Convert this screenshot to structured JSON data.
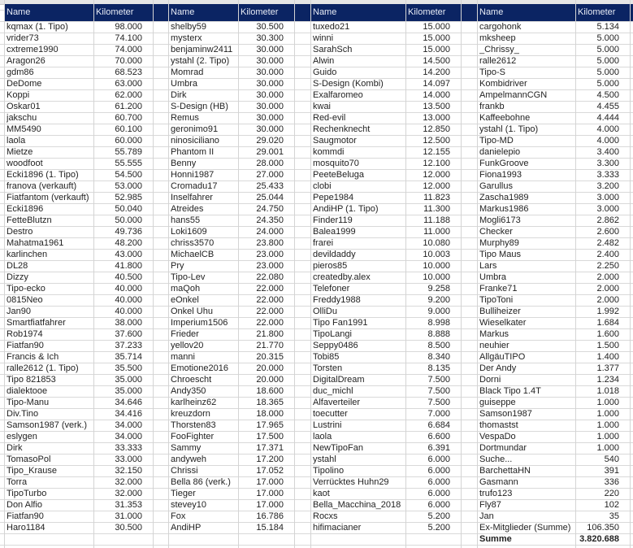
{
  "colors": {
    "header_bg": "#0b2463",
    "header_text": "#e8ecf6",
    "gridline": "#d4d4d4"
  },
  "groups": [
    {
      "header_name": "Name",
      "header_km": "Kilometer",
      "rows": [
        {
          "name": "kqmax (1. Tipo)",
          "km": "98.000"
        },
        {
          "name": "vrider73",
          "km": "74.100"
        },
        {
          "name": "cxtreme1990",
          "km": "74.000"
        },
        {
          "name": "Aragon26",
          "km": "70.000"
        },
        {
          "name": "gdm86",
          "km": "68.523"
        },
        {
          "name": "DeDome",
          "km": "63.000"
        },
        {
          "name": "Koppi",
          "km": "62.000"
        },
        {
          "name": "Oskar01",
          "km": "61.200"
        },
        {
          "name": "jakschu",
          "km": "60.700"
        },
        {
          "name": "MM5490",
          "km": "60.100"
        },
        {
          "name": "laola",
          "km": "60.000"
        },
        {
          "name": "Mietze",
          "km": "55.789"
        },
        {
          "name": "woodfoot",
          "km": "55.555"
        },
        {
          "name": "Ecki1896 (1. Tipo)",
          "km": "54.500"
        },
        {
          "name": "franova (verkauft)",
          "km": "53.000"
        },
        {
          "name": "Fiatfantom (verkauft)",
          "km": "52.985"
        },
        {
          "name": "Ecki1896",
          "km": "50.040"
        },
        {
          "name": "FetteBlutzn",
          "km": "50.000"
        },
        {
          "name": "Destro",
          "km": "49.736"
        },
        {
          "name": "Mahatma1961",
          "km": "48.200"
        },
        {
          "name": "karlinchen",
          "km": "43.000"
        },
        {
          "name": "DL28",
          "km": "41.800"
        },
        {
          "name": "Dizzy",
          "km": "40.500"
        },
        {
          "name": "Tipo-ecko",
          "km": "40.000"
        },
        {
          "name": "0815Neo",
          "km": "40.000"
        },
        {
          "name": "Jan90",
          "km": "40.000"
        },
        {
          "name": "Smartfiatfahrer",
          "km": "38.000"
        },
        {
          "name": "Rob1974",
          "km": "37.600"
        },
        {
          "name": "Fiatfan90",
          "km": "37.233"
        },
        {
          "name": "Francis & Ich",
          "km": "35.714"
        },
        {
          "name": "ralle2612 (1. Tipo)",
          "km": "35.500"
        },
        {
          "name": "Tipo 821853",
          "km": "35.000"
        },
        {
          "name": "dialektooe",
          "km": "35.000"
        },
        {
          "name": "Tipo-Manu",
          "km": "34.646"
        },
        {
          "name": "Div.Tino",
          "km": "34.416"
        },
        {
          "name": "Samson1987 (verk.)",
          "km": "34.000"
        },
        {
          "name": "eslygen",
          "km": "34.000"
        },
        {
          "name": "Dirk",
          "km": "33.333"
        },
        {
          "name": "TomasoPol",
          "km": "33.000"
        },
        {
          "name": "Tipo_Krause",
          "km": "32.150"
        },
        {
          "name": "Torra",
          "km": "32.000"
        },
        {
          "name": "TipoTurbo",
          "km": "32.000"
        },
        {
          "name": "Don Alfio",
          "km": "31.353"
        },
        {
          "name": "Fiatfan90",
          "km": "31.000"
        },
        {
          "name": "Haro1184",
          "km": "30.500"
        }
      ]
    },
    {
      "header_name": "Name",
      "header_km": "Kilometer",
      "rows": [
        {
          "name": "shelby59",
          "km": "30.500"
        },
        {
          "name": "mysterx",
          "km": "30.300"
        },
        {
          "name": "benjaminw2411",
          "km": "30.000"
        },
        {
          "name": "ystahl (2. Tipo)",
          "km": "30.000"
        },
        {
          "name": "Momrad",
          "km": "30.000"
        },
        {
          "name": "Umbra",
          "km": "30.000"
        },
        {
          "name": "Dirk",
          "km": "30.000"
        },
        {
          "name": "S-Design (HB)",
          "km": "30.000"
        },
        {
          "name": "Remus",
          "km": "30.000"
        },
        {
          "name": "geronimo91",
          "km": "30.000"
        },
        {
          "name": "ninosiciliano",
          "km": "29.020"
        },
        {
          "name": "Phantom II",
          "km": "29.001"
        },
        {
          "name": "Benny",
          "km": "28.000"
        },
        {
          "name": "Honni1987",
          "km": "27.000"
        },
        {
          "name": "Cromadu17",
          "km": "25.433"
        },
        {
          "name": "Inselfahrer",
          "km": "25.044"
        },
        {
          "name": "Atreides",
          "km": "24.750"
        },
        {
          "name": "hans55",
          "km": "24.350"
        },
        {
          "name": "Loki1609",
          "km": "24.000"
        },
        {
          "name": "chriss3570",
          "km": "23.800"
        },
        {
          "name": "MichaelCB",
          "km": "23.000"
        },
        {
          "name": "Pry",
          "km": "23.000"
        },
        {
          "name": "Tipo-Lev",
          "km": "22.080"
        },
        {
          "name": "maQoh",
          "km": "22.000"
        },
        {
          "name": "eOnkel",
          "km": "22.000"
        },
        {
          "name": "Onkel Uhu",
          "km": "22.000"
        },
        {
          "name": "Imperium1506",
          "km": "22.000"
        },
        {
          "name": "Frieder",
          "km": "21.800"
        },
        {
          "name": "yellov20",
          "km": "21.770"
        },
        {
          "name": "manni",
          "km": "20.315"
        },
        {
          "name": "Emotione2016",
          "km": "20.000"
        },
        {
          "name": "Chroescht",
          "km": "20.000"
        },
        {
          "name": "Andy350",
          "km": "18.600"
        },
        {
          "name": "karlheinz62",
          "km": "18.365"
        },
        {
          "name": "kreuzdorn",
          "km": "18.000"
        },
        {
          "name": "Thorsten83",
          "km": "17.965"
        },
        {
          "name": "FooFighter",
          "km": "17.500"
        },
        {
          "name": "Sammy",
          "km": "17.371"
        },
        {
          "name": "andyweh",
          "km": "17.200"
        },
        {
          "name": "Chrissi",
          "km": "17.052"
        },
        {
          "name": "Bella 86 (verk.)",
          "km": "17.000"
        },
        {
          "name": "Tieger",
          "km": "17.000"
        },
        {
          "name": "stevey10",
          "km": "17.000"
        },
        {
          "name": "Fox",
          "km": "16.786"
        },
        {
          "name": "AndiHP",
          "km": "15.184"
        }
      ]
    },
    {
      "header_name": "Name",
      "header_km": "Kilometer",
      "rows": [
        {
          "name": "tuxedo21",
          "km": "15.000"
        },
        {
          "name": "winni",
          "km": "15.000"
        },
        {
          "name": "SarahSch",
          "km": "15.000"
        },
        {
          "name": "Alwin",
          "km": "14.500"
        },
        {
          "name": "Guido",
          "km": "14.200"
        },
        {
          "name": "S-Design (Kombi)",
          "km": "14.097"
        },
        {
          "name": "Exalfaromeo",
          "km": "14.000"
        },
        {
          "name": "kwai",
          "km": "13.500"
        },
        {
          "name": "Red-evil",
          "km": "13.000"
        },
        {
          "name": "Rechenknecht",
          "km": "12.850"
        },
        {
          "name": "Saugmotor",
          "km": "12.500"
        },
        {
          "name": "kommdi",
          "km": "12.155"
        },
        {
          "name": "mosquito70",
          "km": "12.100"
        },
        {
          "name": "PeeteBeluga",
          "km": "12.000"
        },
        {
          "name": "clobi",
          "km": "12.000"
        },
        {
          "name": "Pepe1984",
          "km": "11.823"
        },
        {
          "name": "AndiHP (1. Tipo)",
          "km": "11.300"
        },
        {
          "name": "Finder119",
          "km": "11.188"
        },
        {
          "name": "Balea1999",
          "km": "11.000"
        },
        {
          "name": "frarei",
          "km": "10.080"
        },
        {
          "name": "devildaddy",
          "km": "10.003"
        },
        {
          "name": "pieros85",
          "km": "10.000"
        },
        {
          "name": "createdby.alex",
          "km": "10.000"
        },
        {
          "name": "Telefoner",
          "km": "9.258"
        },
        {
          "name": "Freddy1988",
          "km": "9.200"
        },
        {
          "name": "OlliDu",
          "km": "9.000"
        },
        {
          "name": "Tipo Fan1991",
          "km": "8.998"
        },
        {
          "name": "TipoLangi",
          "km": "8.888"
        },
        {
          "name": "Seppy0486",
          "km": "8.500"
        },
        {
          "name": "Tobi85",
          "km": "8.340"
        },
        {
          "name": "Torsten",
          "km": "8.135"
        },
        {
          "name": "DigitalDream",
          "km": "7.500"
        },
        {
          "name": "duc_michl",
          "km": "7.500"
        },
        {
          "name": "Alfaverteiler",
          "km": "7.500"
        },
        {
          "name": "toecutter",
          "km": "7.000"
        },
        {
          "name": "Lustrini",
          "km": "6.684"
        },
        {
          "name": "laola",
          "km": "6.600"
        },
        {
          "name": "NewTipoFan",
          "km": "6.391"
        },
        {
          "name": "ystahl",
          "km": "6.000"
        },
        {
          "name": "Tipolino",
          "km": "6.000"
        },
        {
          "name": "Verrücktes Huhn29",
          "km": "6.000"
        },
        {
          "name": "kaot",
          "km": "6.000"
        },
        {
          "name": "Bella_Macchina_2018",
          "km": "6.000"
        },
        {
          "name": "Rocxs",
          "km": "5.200"
        },
        {
          "name": "hifimacianer",
          "km": "5.200"
        }
      ]
    },
    {
      "header_name": "Name",
      "header_km": "Kilometer",
      "rows": [
        {
          "name": "cargohonk",
          "km": "5.134"
        },
        {
          "name": "mksheep",
          "km": "5.000"
        },
        {
          "name": "_Chrissy_",
          "km": "5.000"
        },
        {
          "name": "ralle2612",
          "km": "5.000"
        },
        {
          "name": "Tipo-S",
          "km": "5.000"
        },
        {
          "name": "Kombidriver",
          "km": "5.000"
        },
        {
          "name": "AmpelmannCGN",
          "km": "4.500"
        },
        {
          "name": "frankb",
          "km": "4.455"
        },
        {
          "name": "Kaffeebohne",
          "km": "4.444"
        },
        {
          "name": "ystahl (1. Tipo)",
          "km": "4.000"
        },
        {
          "name": "Tipo-MD",
          "km": "4.000"
        },
        {
          "name": "danielepio",
          "km": "3.400"
        },
        {
          "name": "FunkGroove",
          "km": "3.300"
        },
        {
          "name": "Fiona1993",
          "km": "3.333"
        },
        {
          "name": "Garullus",
          "km": "3.200"
        },
        {
          "name": "Zascha1989",
          "km": "3.000"
        },
        {
          "name": "Markus1986",
          "km": "3.000"
        },
        {
          "name": "Mogli6173",
          "km": "2.862"
        },
        {
          "name": "Checker",
          "km": "2.600"
        },
        {
          "name": "Murphy89",
          "km": "2.482"
        },
        {
          "name": "Tipo Maus",
          "km": "2.400"
        },
        {
          "name": "Lars",
          "km": "2.250"
        },
        {
          "name": "Umbra",
          "km": "2.000"
        },
        {
          "name": "Franke71",
          "km": "2.000"
        },
        {
          "name": "TipoToni",
          "km": "2.000"
        },
        {
          "name": "Bulliheizer",
          "km": "1.992"
        },
        {
          "name": "Wieselkater",
          "km": "1.684"
        },
        {
          "name": "Markus",
          "km": "1.600"
        },
        {
          "name": "neuhier",
          "km": "1.500"
        },
        {
          "name": "AllgäuTIPO",
          "km": "1.400"
        },
        {
          "name": "Der Andy",
          "km": "1.377"
        },
        {
          "name": "Dorni",
          "km": "1.234"
        },
        {
          "name": "Black Tipo 1.4T",
          "km": "1.018"
        },
        {
          "name": "guiseppe",
          "km": "1.000"
        },
        {
          "name": "Samson1987",
          "km": "1.000"
        },
        {
          "name": "thomastst",
          "km": "1.000"
        },
        {
          "name": "VespaDo",
          "km": "1.000"
        },
        {
          "name": "Dortmundar",
          "km": "1.000"
        },
        {
          "name": "Suche...",
          "km": "540"
        },
        {
          "name": "BarchettaHN",
          "km": "391"
        },
        {
          "name": "Gasmann",
          "km": "336"
        },
        {
          "name": "trufo123",
          "km": "220"
        },
        {
          "name": "Fly87",
          "km": "102"
        },
        {
          "name": "Jan",
          "km": "35"
        },
        {
          "name": "Ex-Mitglieder (Summe)",
          "km": "106.350"
        }
      ]
    }
  ],
  "total": {
    "label": "Summe",
    "value": "3.820.688"
  }
}
